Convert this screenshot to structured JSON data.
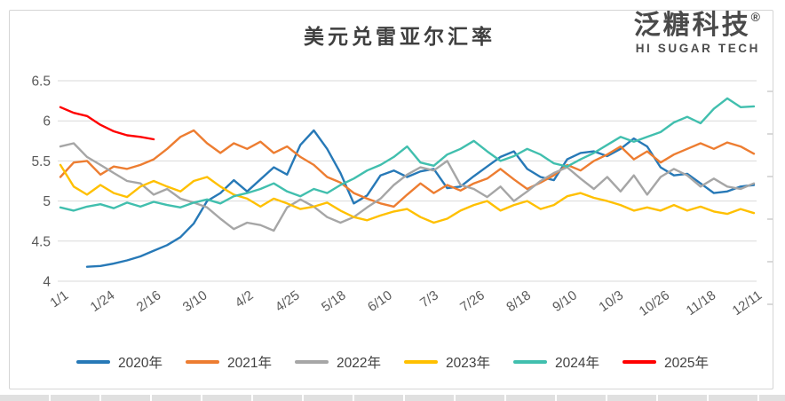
{
  "logo": {
    "name_cn": "泛糖科技",
    "registered_mark": "®",
    "name_en": "HI SUGAR TECH"
  },
  "chart_data": {
    "type": "line",
    "title": "美元兑雷亚尔汇率",
    "grid": "horizontal",
    "grid_color": "#d9d9d9",
    "axis_label_color": "#595959",
    "legend_position": "bottom",
    "ylim": [
      4,
      6.5
    ],
    "points_per_series": 53,
    "y_ticks": [
      {
        "label": "6.5",
        "value": 6.5
      },
      {
        "label": "6",
        "value": 6.0
      },
      {
        "label": "5.5",
        "value": 5.5
      },
      {
        "label": "5",
        "value": 5.0
      },
      {
        "label": "4.5",
        "value": 4.5
      },
      {
        "label": "4",
        "value": 4.0
      }
    ],
    "x_tick_labels": [
      "1/1",
      "1/24",
      "2/16",
      "3/10",
      "4/2",
      "4/25",
      "5/18",
      "6/10",
      "7/3",
      "7/26",
      "8/18",
      "9/10",
      "10/3",
      "10/26",
      "11/18",
      "12/11"
    ],
    "series": [
      {
        "name": "2020年",
        "color": "#2779B7",
        "values": [
          null,
          null,
          4.18,
          4.19,
          4.22,
          4.26,
          4.31,
          4.38,
          4.45,
          4.55,
          4.72,
          5.0,
          5.1,
          5.26,
          5.12,
          5.27,
          5.42,
          5.33,
          5.7,
          5.88,
          5.65,
          5.35,
          4.97,
          5.07,
          5.32,
          5.38,
          5.3,
          5.37,
          5.4,
          5.16,
          5.18,
          5.31,
          5.43,
          5.55,
          5.62,
          5.4,
          5.3,
          5.26,
          5.52,
          5.6,
          5.62,
          5.56,
          5.65,
          5.78,
          5.68,
          5.42,
          5.32,
          5.34,
          5.22,
          5.1,
          5.12,
          5.18,
          5.2
        ]
      },
      {
        "name": "2021年",
        "color": "#ED7D31",
        "values": [
          5.3,
          5.48,
          5.5,
          5.33,
          5.43,
          5.4,
          5.45,
          5.52,
          5.65,
          5.8,
          5.88,
          5.72,
          5.6,
          5.72,
          5.65,
          5.74,
          5.6,
          5.68,
          5.55,
          5.45,
          5.3,
          5.23,
          5.1,
          5.03,
          4.97,
          4.93,
          5.08,
          5.22,
          5.1,
          5.2,
          5.13,
          5.22,
          5.28,
          5.4,
          5.27,
          5.15,
          5.23,
          5.32,
          5.45,
          5.38,
          5.5,
          5.58,
          5.68,
          5.52,
          5.62,
          5.48,
          5.58,
          5.65,
          5.72,
          5.65,
          5.73,
          5.68,
          5.59
        ]
      },
      {
        "name": "2022年",
        "color": "#A6A6A6",
        "values": [
          5.68,
          5.72,
          5.55,
          5.45,
          5.35,
          5.25,
          5.22,
          5.08,
          5.15,
          5.03,
          4.98,
          4.92,
          4.78,
          4.65,
          4.73,
          4.7,
          4.63,
          4.92,
          5.02,
          4.93,
          4.8,
          4.73,
          4.8,
          4.92,
          5.03,
          5.2,
          5.33,
          5.42,
          5.38,
          5.5,
          5.2,
          5.15,
          5.05,
          5.18,
          5.0,
          5.12,
          5.25,
          5.35,
          5.42,
          5.28,
          5.15,
          5.3,
          5.12,
          5.32,
          5.08,
          5.3,
          5.4,
          5.32,
          5.18,
          5.28,
          5.18,
          5.15,
          5.22
        ]
      },
      {
        "name": "2023年",
        "color": "#FFC000",
        "values": [
          5.45,
          5.18,
          5.08,
          5.2,
          5.1,
          5.05,
          5.18,
          5.25,
          5.18,
          5.12,
          5.25,
          5.3,
          5.18,
          5.08,
          5.03,
          4.93,
          5.03,
          4.97,
          4.9,
          4.93,
          4.98,
          4.88,
          4.8,
          4.76,
          4.82,
          4.87,
          4.9,
          4.8,
          4.73,
          4.78,
          4.88,
          4.95,
          5.0,
          4.88,
          4.95,
          5.0,
          4.9,
          4.95,
          5.06,
          5.1,
          5.04,
          5.0,
          4.95,
          4.88,
          4.92,
          4.88,
          4.95,
          4.88,
          4.93,
          4.87,
          4.84,
          4.9,
          4.85
        ]
      },
      {
        "name": "2024年",
        "color": "#41BFAE",
        "values": [
          4.92,
          4.88,
          4.93,
          4.96,
          4.91,
          4.98,
          4.93,
          4.99,
          4.95,
          4.92,
          4.98,
          5.02,
          4.97,
          5.06,
          5.1,
          5.15,
          5.22,
          5.12,
          5.06,
          5.15,
          5.1,
          5.2,
          5.28,
          5.38,
          5.45,
          5.55,
          5.68,
          5.48,
          5.44,
          5.58,
          5.65,
          5.75,
          5.62,
          5.5,
          5.56,
          5.65,
          5.58,
          5.47,
          5.43,
          5.52,
          5.6,
          5.7,
          5.8,
          5.74,
          5.8,
          5.86,
          5.98,
          6.05,
          5.97,
          6.15,
          6.28,
          6.17,
          6.18
        ]
      },
      {
        "name": "2025年",
        "color": "#FF0000",
        "values": [
          6.17,
          6.1,
          6.06,
          5.95,
          5.87,
          5.82,
          5.8,
          5.77
        ]
      }
    ]
  }
}
